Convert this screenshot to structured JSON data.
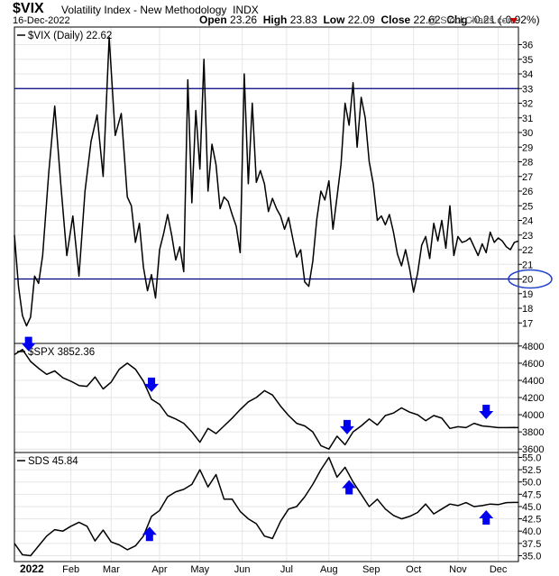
{
  "header": {
    "symbol": "$VIX",
    "name": "Volatility Index - New Methodology",
    "exchange": "INDX",
    "date": "16-Dec-2022",
    "open_label": "Open",
    "open": "23.26",
    "high_label": "High",
    "high": "23.83",
    "low_label": "Low",
    "low": "22.09",
    "close_label": "Close",
    "close": "22.62",
    "chg_label": "Chg",
    "chg": "-0.21 (-0.92%)",
    "brand": "@ StockCharts.com"
  },
  "chart_data": [
    {
      "type": "line",
      "legend": "$VIX (Daily) 22.62",
      "ylim": [
        15.6,
        37.2
      ],
      "yticks": [
        17,
        18,
        19,
        20,
        21,
        22,
        23,
        24,
        25,
        26,
        27,
        28,
        29,
        30,
        31,
        32,
        33,
        34,
        35,
        36
      ],
      "hlines": [
        33.0,
        20.0
      ],
      "circled_tick": 20,
      "x": [
        0,
        2,
        4,
        6,
        8,
        10,
        12,
        14,
        17,
        20,
        23,
        26,
        29,
        32,
        35,
        38,
        41,
        44,
        47,
        50,
        53,
        56,
        58,
        60,
        62,
        64,
        66,
        68,
        70,
        72,
        74,
        76,
        78,
        80,
        82,
        84,
        86,
        88,
        90,
        92,
        94,
        96,
        98,
        100,
        102,
        104,
        106,
        108,
        110,
        112,
        114,
        116,
        118,
        120,
        122,
        124,
        126,
        128,
        130,
        132,
        134,
        136,
        138,
        140,
        142,
        144,
        146,
        148,
        150,
        152,
        154,
        156,
        158,
        160,
        162,
        164,
        166,
        168,
        170,
        172,
        174,
        176,
        178,
        180,
        182,
        184,
        186,
        188,
        190,
        192,
        194,
        196,
        198,
        200,
        202,
        204,
        206,
        208,
        210,
        212,
        214,
        216,
        218,
        220,
        222,
        224,
        226,
        228,
        230,
        232,
        234,
        236,
        238,
        240,
        242,
        244,
        246,
        248,
        250
      ],
      "values": [
        23.0,
        19.5,
        17.5,
        16.8,
        17.4,
        20.2,
        19.7,
        21.6,
        27.2,
        31.8,
        26.5,
        21.6,
        24.3,
        20.2,
        26.0,
        29.4,
        31.2,
        27.0,
        36.5,
        29.8,
        31.3,
        25.6,
        25.0,
        22.5,
        23.8,
        20.8,
        19.2,
        20.3,
        18.7,
        22.0,
        23.1,
        24.4,
        23.0,
        21.3,
        22.2,
        20.5,
        33.6,
        25.2,
        31.5,
        27.5,
        35.0,
        26.0,
        29.2,
        27.8,
        24.8,
        25.6,
        25.3,
        24.4,
        23.6,
        21.8,
        34.0,
        26.5,
        32.0,
        26.6,
        27.4,
        26.5,
        24.6,
        25.5,
        24.8,
        24.3,
        23.4,
        24.2,
        22.8,
        21.5,
        22.0,
        19.8,
        19.5,
        21.2,
        24.1,
        26.0,
        25.4,
        26.7,
        23.4,
        25.6,
        27.8,
        32.0,
        30.5,
        33.4,
        29.0,
        32.4,
        31.0,
        28.0,
        26.5,
        24.0,
        24.3,
        23.7,
        24.4,
        23.2,
        21.7,
        20.9,
        22.0,
        20.7,
        19.1,
        20.4,
        22.3,
        22.9,
        21.4,
        23.8,
        22.6,
        24.0,
        22.1,
        25.0,
        21.6,
        22.9,
        22.5,
        22.6,
        22.8,
        22.2,
        21.6,
        22.4,
        21.8,
        23.2,
        22.5,
        22.8,
        22.6,
        22.2,
        22.0,
        22.5,
        22.6
      ]
    },
    {
      "type": "line",
      "legend": "$SPX 3852.36",
      "ylim": [
        3560,
        4830
      ],
      "yticks": [
        3600,
        3800,
        4000,
        4200,
        4400,
        4600,
        4800
      ],
      "x": [
        0,
        4,
        8,
        12,
        16,
        20,
        24,
        28,
        32,
        36,
        40,
        44,
        48,
        52,
        56,
        60,
        64,
        68,
        72,
        76,
        80,
        84,
        88,
        92,
        96,
        100,
        104,
        108,
        112,
        116,
        120,
        124,
        128,
        132,
        136,
        140,
        144,
        148,
        152,
        156,
        160,
        164,
        168,
        172,
        176,
        180,
        184,
        188,
        192,
        196,
        200,
        204,
        208,
        212,
        216,
        220,
        224,
        228,
        232,
        236,
        240,
        244,
        248,
        250
      ],
      "values": [
        4700,
        4760,
        4620,
        4540,
        4470,
        4510,
        4430,
        4390,
        4340,
        4330,
        4440,
        4300,
        4380,
        4530,
        4600,
        4530,
        4390,
        4180,
        4120,
        3990,
        3950,
        3900,
        3800,
        3680,
        3840,
        3780,
        3870,
        3960,
        4060,
        4150,
        4200,
        4280,
        4230,
        4100,
        3990,
        3900,
        3870,
        3800,
        3640,
        3600,
        3750,
        3650,
        3800,
        3870,
        3950,
        3880,
        3990,
        4020,
        4080,
        4030,
        4000,
        3930,
        3990,
        3960,
        3840,
        3860,
        3850,
        3900,
        3870,
        3860,
        3850,
        3850,
        3852,
        3850
      ]
    },
    {
      "type": "line",
      "legend": "SDS 45.84",
      "ylim": [
        33.8,
        56.0
      ],
      "yticks": [
        35.0,
        37.5,
        40.0,
        42.5,
        45.0,
        47.5,
        50.0,
        52.5,
        55.0
      ],
      "x": [
        0,
        4,
        8,
        12,
        16,
        20,
        24,
        28,
        32,
        36,
        40,
        44,
        48,
        52,
        56,
        60,
        64,
        68,
        72,
        76,
        80,
        84,
        88,
        92,
        96,
        100,
        104,
        108,
        112,
        116,
        120,
        124,
        128,
        132,
        136,
        140,
        144,
        148,
        152,
        156,
        160,
        164,
        168,
        172,
        176,
        180,
        184,
        188,
        192,
        196,
        200,
        204,
        208,
        212,
        216,
        220,
        224,
        228,
        232,
        236,
        240,
        244,
        248,
        250
      ],
      "values": [
        37.5,
        35.2,
        35.0,
        37.0,
        39.0,
        40.3,
        40.0,
        41.0,
        41.8,
        41.0,
        38.0,
        40.2,
        37.8,
        37.2,
        36.2,
        37.0,
        39.0,
        43.0,
        44.2,
        47.0,
        48.0,
        48.5,
        49.5,
        52.5,
        49.0,
        51.5,
        46.5,
        46.5,
        44.0,
        42.5,
        41.5,
        39.0,
        38.5,
        42.0,
        44.5,
        45.0,
        47.0,
        49.5,
        52.5,
        55.0,
        51.0,
        53.0,
        50.0,
        47.5,
        45.0,
        46.5,
        44.5,
        43.2,
        42.5,
        43.0,
        43.8,
        45.5,
        43.5,
        44.5,
        45.5,
        45.2,
        45.8,
        45.0,
        45.2,
        45.5,
        45.4,
        45.8,
        45.84,
        45.84
      ]
    }
  ],
  "x_axis": {
    "domain": [
      0,
      250
    ],
    "months": [
      {
        "label": "Feb",
        "x": 28
      },
      {
        "label": "Mar",
        "x": 48
      },
      {
        "label": "Apr",
        "x": 72
      },
      {
        "label": "May",
        "x": 92
      },
      {
        "label": "Jun",
        "x": 113
      },
      {
        "label": "Jul",
        "x": 135
      },
      {
        "label": "Aug",
        "x": 156
      },
      {
        "label": "Sep",
        "x": 177
      },
      {
        "label": "Oct",
        "x": 198
      },
      {
        "label": "Nov",
        "x": 220
      },
      {
        "label": "Dec",
        "x": 240
      }
    ],
    "first_label": "2022"
  },
  "annotations": {
    "arrow_color": "#0000ee",
    "down_arrows_spx": [
      7,
      68,
      165,
      234
    ],
    "up_arrows_sds": [
      67,
      166,
      234
    ]
  },
  "colors": {
    "line": "#000000",
    "hline": "#000080",
    "grid": "#e6e6e6",
    "arrow": "#0000ee"
  }
}
